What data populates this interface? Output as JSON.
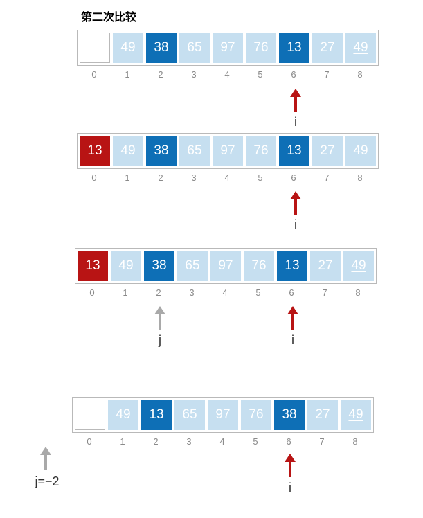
{
  "title": "第二次比较",
  "indices": [
    "0",
    "1",
    "2",
    "3",
    "4",
    "5",
    "6",
    "7",
    "8"
  ],
  "rows": [
    {
      "cells": [
        {
          "v": "",
          "s": "empty"
        },
        {
          "v": "49",
          "s": "light"
        },
        {
          "v": "38",
          "s": "dark"
        },
        {
          "v": "65",
          "s": "light"
        },
        {
          "v": "97",
          "s": "light"
        },
        {
          "v": "76",
          "s": "light"
        },
        {
          "v": "13",
          "s": "dark"
        },
        {
          "v": "27",
          "s": "light"
        },
        {
          "v": "49",
          "s": "light ul"
        }
      ]
    },
    {
      "cells": [
        {
          "v": "13",
          "s": "red"
        },
        {
          "v": "49",
          "s": "light"
        },
        {
          "v": "38",
          "s": "dark"
        },
        {
          "v": "65",
          "s": "light"
        },
        {
          "v": "97",
          "s": "light"
        },
        {
          "v": "76",
          "s": "light"
        },
        {
          "v": "13",
          "s": "dark"
        },
        {
          "v": "27",
          "s": "light"
        },
        {
          "v": "49",
          "s": "light ul"
        }
      ]
    },
    {
      "cells": [
        {
          "v": "13",
          "s": "red"
        },
        {
          "v": "49",
          "s": "light"
        },
        {
          "v": "38",
          "s": "dark"
        },
        {
          "v": "65",
          "s": "light"
        },
        {
          "v": "97",
          "s": "light"
        },
        {
          "v": "76",
          "s": "light"
        },
        {
          "v": "13",
          "s": "dark"
        },
        {
          "v": "27",
          "s": "light"
        },
        {
          "v": "49",
          "s": "light ul"
        }
      ]
    },
    {
      "cells": [
        {
          "v": "",
          "s": "empty"
        },
        {
          "v": "49",
          "s": "light"
        },
        {
          "v": "13",
          "s": "dark"
        },
        {
          "v": "65",
          "s": "light"
        },
        {
          "v": "97",
          "s": "light"
        },
        {
          "v": "76",
          "s": "light"
        },
        {
          "v": "38",
          "s": "dark"
        },
        {
          "v": "27",
          "s": "light"
        },
        {
          "v": "49",
          "s": "light ul"
        }
      ]
    }
  ],
  "pointers": {
    "i": "i",
    "j": "j",
    "j_final": "j=−2"
  },
  "colors": {
    "light_cell": "#c6dff0",
    "dark_cell": "#0e6fb6",
    "red_cell": "#b81414",
    "arrow_red": "#b81414",
    "arrow_gray": "#a9a9a9"
  }
}
